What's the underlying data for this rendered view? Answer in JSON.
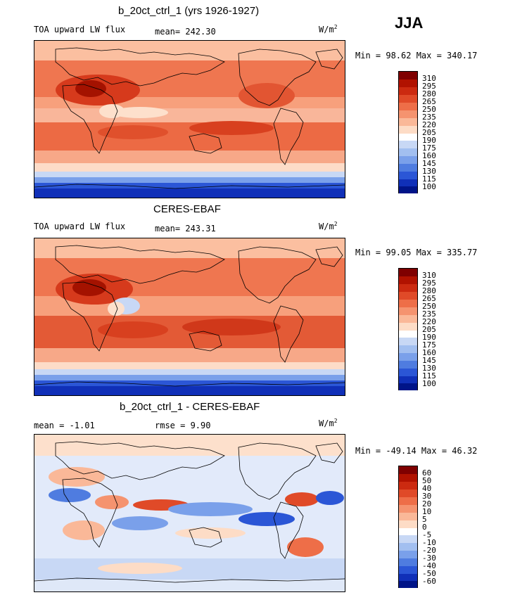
{
  "season": "JJA",
  "panels": [
    {
      "title": "b_20ct_ctrl_1 (yrs 1926-1927)",
      "left_label": "TOA upward LW flux",
      "center_label": "mean= 242.30",
      "units": "W/m",
      "units_sup": "2",
      "minmax": "Min =   98.62 Max = 340.17",
      "levels": [
        "310",
        "295",
        "280",
        "265",
        "250",
        "235",
        "220",
        "205",
        "190",
        "175",
        "160",
        "145",
        "130",
        "115",
        "100"
      ],
      "colors": [
        "#7f0000",
        "#b11200",
        "#cc2a10",
        "#e04a28",
        "#ee6e48",
        "#f5936f",
        "#fab898",
        "#fddcc6",
        "#ffffff",
        "#c8d8f5",
        "#a2bff0",
        "#7aa0ea",
        "#4f7ce0",
        "#2b56d6",
        "#1030b8",
        "#001488"
      ]
    },
    {
      "title": "CERES-EBAF",
      "left_label": "TOA upward LW flux",
      "center_label": "mean= 243.31",
      "units": "W/m",
      "units_sup": "2",
      "minmax": "Min =   99.05 Max = 335.77",
      "levels": [
        "310",
        "295",
        "280",
        "265",
        "250",
        "235",
        "220",
        "205",
        "190",
        "175",
        "160",
        "145",
        "130",
        "115",
        "100"
      ],
      "colors": [
        "#7f0000",
        "#b11200",
        "#cc2a10",
        "#e04a28",
        "#ee6e48",
        "#f5936f",
        "#fab898",
        "#fddcc6",
        "#ffffff",
        "#c8d8f5",
        "#a2bff0",
        "#7aa0ea",
        "#4f7ce0",
        "#2b56d6",
        "#1030b8",
        "#001488"
      ]
    },
    {
      "title": "b_20ct_ctrl_1 - CERES-EBAF",
      "left_label": "mean =   -1.01",
      "center_label": "rmse =    9.90",
      "units": "W/m",
      "units_sup": "2",
      "minmax": "Min = -49.14 Max =  46.32",
      "levels": [
        "60",
        "50",
        "40",
        "30",
        "20",
        "10",
        "5",
        "0",
        "-5",
        "-10",
        "-20",
        "-30",
        "-40",
        "-50",
        "-60"
      ],
      "colors": [
        "#7f0000",
        "#b11200",
        "#cc2a10",
        "#e04a28",
        "#ee6e48",
        "#f5936f",
        "#fab898",
        "#fddcc6",
        "#ffffff",
        "#c8d8f5",
        "#a2bff0",
        "#7aa0ea",
        "#4f7ce0",
        "#2b56d6",
        "#1030b8",
        "#001488"
      ]
    }
  ]
}
